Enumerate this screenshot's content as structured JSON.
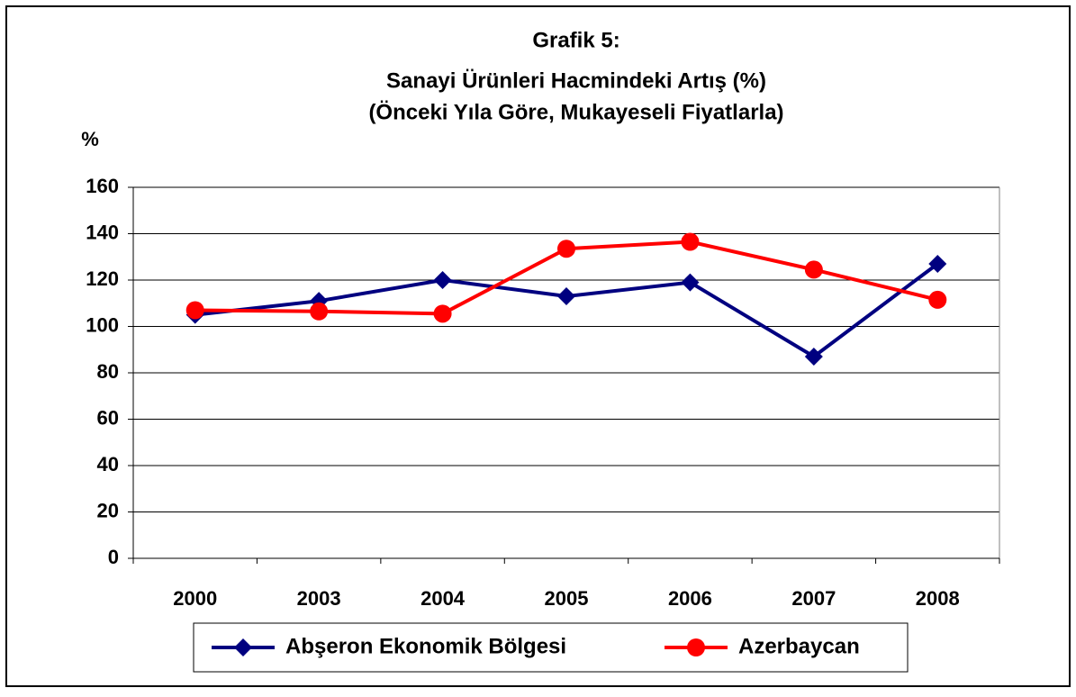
{
  "chart_data": {
    "type": "line",
    "title": [
      "Grafik 5:",
      "Sanayi Ürünleri Hacmindeki Artış (%)",
      "(Önceki Yıla Göre, Mukayeseli Fiyatlarla)"
    ],
    "y_label": "%",
    "categories": [
      "2000",
      "2003",
      "2004",
      "2005",
      "2006",
      "2007",
      "2008"
    ],
    "series": [
      {
        "name": "Abşeron Ekonomik Bölgesi",
        "color": "#000080",
        "marker": "diamond",
        "values": [
          105,
          111,
          120,
          113,
          119,
          87,
          127
        ]
      },
      {
        "name": "Azerbaycan",
        "color": "#ff0000",
        "marker": "circle",
        "values": [
          107,
          106.5,
          105.5,
          133.5,
          136.5,
          124.5,
          111.5
        ]
      }
    ],
    "ylim": [
      0,
      160
    ],
    "yticks": [
      0,
      20,
      40,
      60,
      80,
      100,
      120,
      140,
      160
    ],
    "grid": true,
    "legend": "bottom"
  }
}
